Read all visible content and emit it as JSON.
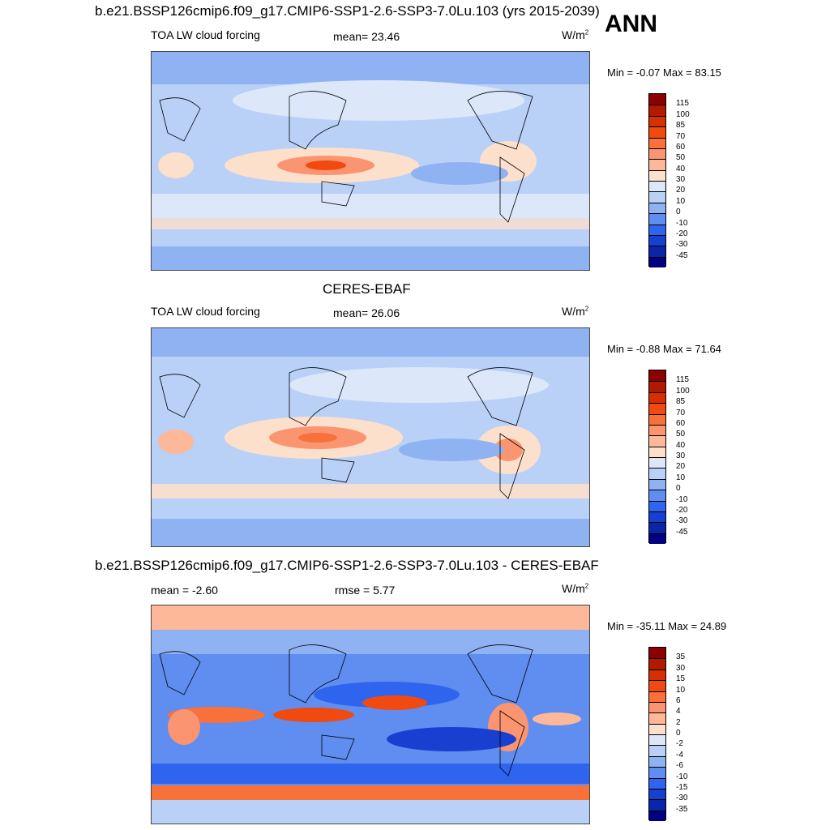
{
  "main_title": "b.e21.BSSP126cmip6.f09_g17.CMIP6-SSP1-2.6-SSP3-7.0Lu.103 (yrs 2015-2039)",
  "season": "ANN",
  "panels": [
    {
      "variable": "TOA LW cloud forcing",
      "mean_label": "mean=  23.46",
      "units": "W/m",
      "units_exp": "2",
      "minmax": "Min =  -0.07 Max =  83.15"
    },
    {
      "title": "CERES-EBAF",
      "variable": "TOA LW cloud forcing",
      "mean_label": "mean=  26.06",
      "units": "W/m",
      "units_exp": "2",
      "minmax": "Min =  -0.88 Max =  71.64"
    },
    {
      "title": "b.e21.BSSP126cmip6.f09_g17.CMIP6-SSP1-2.6-SSP3-7.0Lu.103 - CERES-EBAF",
      "mean_label": "mean =  -2.60",
      "rmse_label": "rmse =   5.77",
      "units": "W/m",
      "units_exp": "2",
      "minmax": "Min = -35.11 Max =  24.89"
    }
  ],
  "colorbar_main": {
    "labels": [
      "115",
      "100",
      "85",
      "70",
      "60",
      "50",
      "40",
      "30",
      "20",
      "10",
      "0",
      "-10",
      "-20",
      "-30",
      "-45"
    ],
    "colors": [
      "#8b0000",
      "#b01a00",
      "#d63000",
      "#f04a10",
      "#f8703a",
      "#fb9470",
      "#fdb899",
      "#fde0cc",
      "#dce8fa",
      "#b9d0f7",
      "#8fb2f2",
      "#5f8df0",
      "#2f64ef",
      "#1840d0",
      "#0c24a8",
      "#000080"
    ]
  },
  "colorbar_diff": {
    "labels": [
      "35",
      "30",
      "15",
      "10",
      "6",
      "4",
      "2",
      "0",
      "-2",
      "-4",
      "-6",
      "-10",
      "-15",
      "-30",
      "-35"
    ],
    "colors": [
      "#8b0000",
      "#b01a00",
      "#d63000",
      "#f04a10",
      "#f8703a",
      "#fb9470",
      "#fdb899",
      "#fde0cc",
      "#dce8fa",
      "#b9d0f7",
      "#8fb2f2",
      "#5f8df0",
      "#2f64ef",
      "#1840d0",
      "#0c24a8",
      "#000080"
    ]
  }
}
